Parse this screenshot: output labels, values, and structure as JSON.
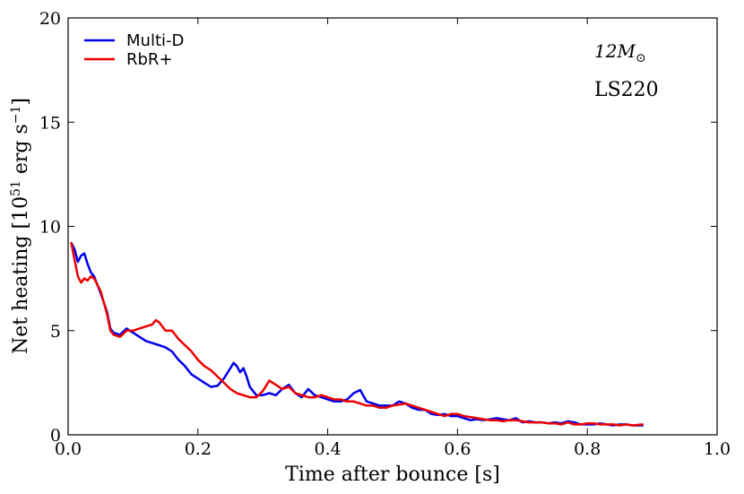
{
  "chart_data": {
    "type": "line",
    "title": "",
    "xlabel": "Time after bounce [s]",
    "ylabel_prefix": "Net heating [10",
    "ylabel_exp1": "51",
    "ylabel_mid": " erg s",
    "ylabel_exp2": "−1",
    "ylabel_suffix": "]",
    "xlim": [
      0.0,
      1.0
    ],
    "ylim": [
      0,
      20
    ],
    "xticks": [
      0.0,
      0.2,
      0.4,
      0.6,
      0.8,
      1.0
    ],
    "xtick_labels": [
      "0.0",
      "0.2",
      "0.4",
      "0.6",
      "0.8",
      "1.0"
    ],
    "yticks": [
      0,
      5,
      10,
      15,
      20
    ],
    "ytick_labels": [
      "0",
      "5",
      "10",
      "15",
      "20"
    ],
    "legend_position": "top-left",
    "annotations": {
      "mass_base": "12M",
      "mass_sub": "⊙",
      "eos": "LS220"
    },
    "series": [
      {
        "name": "Multi-D",
        "color": "#0000ee",
        "x": [
          0.005,
          0.01,
          0.015,
          0.02,
          0.025,
          0.03,
          0.035,
          0.04,
          0.05,
          0.06,
          0.065,
          0.07,
          0.08,
          0.09,
          0.1,
          0.11,
          0.12,
          0.13,
          0.14,
          0.15,
          0.16,
          0.17,
          0.18,
          0.19,
          0.2,
          0.21,
          0.22,
          0.23,
          0.24,
          0.25,
          0.255,
          0.26,
          0.265,
          0.27,
          0.275,
          0.28,
          0.29,
          0.3,
          0.31,
          0.32,
          0.33,
          0.34,
          0.35,
          0.36,
          0.37,
          0.38,
          0.39,
          0.4,
          0.41,
          0.42,
          0.43,
          0.44,
          0.45,
          0.46,
          0.47,
          0.48,
          0.49,
          0.5,
          0.51,
          0.52,
          0.53,
          0.54,
          0.55,
          0.56,
          0.57,
          0.58,
          0.59,
          0.6,
          0.61,
          0.62,
          0.63,
          0.64,
          0.65,
          0.66,
          0.67,
          0.68,
          0.69,
          0.7,
          0.71,
          0.72,
          0.73,
          0.74,
          0.75,
          0.76,
          0.77,
          0.78,
          0.79,
          0.8,
          0.81,
          0.82,
          0.83,
          0.84,
          0.85,
          0.86,
          0.87,
          0.885
        ],
        "values": [
          9.2,
          8.9,
          8.3,
          8.6,
          8.7,
          8.2,
          7.8,
          7.6,
          6.8,
          5.9,
          5.1,
          4.9,
          4.8,
          5.1,
          4.9,
          4.7,
          4.5,
          4.4,
          4.3,
          4.2,
          4.0,
          3.6,
          3.3,
          2.9,
          2.7,
          2.5,
          2.3,
          2.35,
          2.7,
          3.2,
          3.45,
          3.3,
          3.0,
          3.2,
          2.8,
          2.3,
          1.9,
          1.9,
          2.0,
          1.9,
          2.2,
          2.4,
          2.0,
          1.8,
          2.2,
          1.9,
          1.8,
          1.7,
          1.6,
          1.6,
          1.7,
          2.0,
          2.15,
          1.6,
          1.5,
          1.4,
          1.4,
          1.4,
          1.6,
          1.5,
          1.3,
          1.2,
          1.2,
          1.0,
          0.95,
          1.0,
          0.9,
          0.9,
          0.8,
          0.7,
          0.75,
          0.7,
          0.75,
          0.8,
          0.75,
          0.7,
          0.8,
          0.6,
          0.65,
          0.6,
          0.6,
          0.55,
          0.6,
          0.55,
          0.65,
          0.6,
          0.5,
          0.5,
          0.5,
          0.55,
          0.5,
          0.45,
          0.5,
          0.5,
          0.45,
          0.45
        ]
      },
      {
        "name": "RbR+",
        "color": "#ee0000",
        "x": [
          0.005,
          0.01,
          0.015,
          0.02,
          0.025,
          0.03,
          0.035,
          0.04,
          0.05,
          0.06,
          0.065,
          0.07,
          0.08,
          0.09,
          0.1,
          0.11,
          0.12,
          0.13,
          0.135,
          0.14,
          0.15,
          0.16,
          0.165,
          0.17,
          0.18,
          0.19,
          0.2,
          0.21,
          0.22,
          0.23,
          0.24,
          0.25,
          0.26,
          0.27,
          0.28,
          0.29,
          0.3,
          0.31,
          0.32,
          0.33,
          0.34,
          0.35,
          0.36,
          0.37,
          0.38,
          0.39,
          0.4,
          0.41,
          0.42,
          0.43,
          0.44,
          0.45,
          0.46,
          0.47,
          0.48,
          0.49,
          0.5,
          0.51,
          0.52,
          0.53,
          0.54,
          0.55,
          0.56,
          0.57,
          0.58,
          0.59,
          0.6,
          0.61,
          0.62,
          0.63,
          0.64,
          0.65,
          0.66,
          0.67,
          0.68,
          0.69,
          0.7,
          0.71,
          0.72,
          0.73,
          0.74,
          0.75,
          0.76,
          0.77,
          0.78,
          0.79,
          0.8,
          0.81,
          0.82,
          0.83,
          0.84,
          0.85,
          0.86,
          0.87,
          0.885
        ],
        "values": [
          9.2,
          8.4,
          7.6,
          7.3,
          7.5,
          7.4,
          7.6,
          7.5,
          6.9,
          5.8,
          5.0,
          4.8,
          4.7,
          5.0,
          5.0,
          5.1,
          5.2,
          5.3,
          5.5,
          5.4,
          5.0,
          5.0,
          4.8,
          4.6,
          4.3,
          4.0,
          3.6,
          3.3,
          3.1,
          2.8,
          2.5,
          2.2,
          2.0,
          1.9,
          1.8,
          1.8,
          2.1,
          2.6,
          2.4,
          2.2,
          2.3,
          2.0,
          1.9,
          1.8,
          1.8,
          1.9,
          1.8,
          1.7,
          1.7,
          1.6,
          1.6,
          1.5,
          1.4,
          1.4,
          1.3,
          1.3,
          1.4,
          1.45,
          1.5,
          1.4,
          1.3,
          1.2,
          1.1,
          1.0,
          0.9,
          1.0,
          1.0,
          0.9,
          0.85,
          0.8,
          0.75,
          0.7,
          0.7,
          0.65,
          0.7,
          0.7,
          0.65,
          0.6,
          0.6,
          0.6,
          0.55,
          0.55,
          0.5,
          0.6,
          0.5,
          0.5,
          0.55,
          0.55,
          0.5,
          0.5,
          0.5,
          0.45,
          0.5,
          0.45,
          0.5
        ]
      }
    ]
  }
}
